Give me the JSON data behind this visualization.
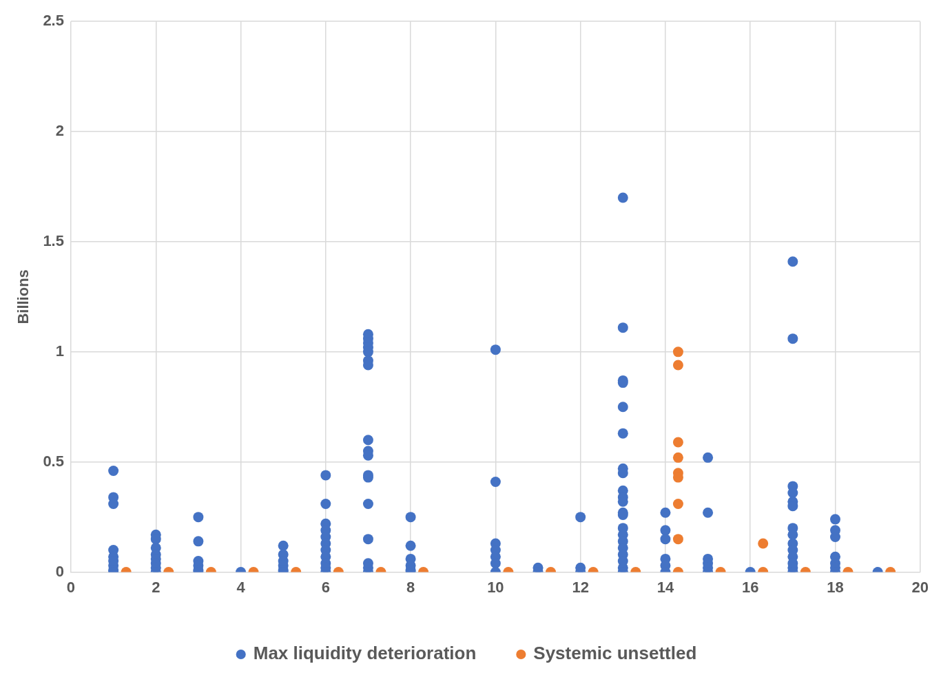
{
  "chart_data": {
    "type": "scatter",
    "ylabel": "Billions",
    "xlim": [
      0,
      20
    ],
    "xticks": [
      0,
      2,
      4,
      6,
      8,
      10,
      12,
      14,
      16,
      18,
      20
    ],
    "ylim": [
      0,
      2.5
    ],
    "yticks": [
      0,
      0.5,
      1,
      1.5,
      2,
      2.5
    ],
    "grid": true,
    "legend": "bottom",
    "marker": "circle",
    "series": [
      {
        "name": "Max liquidity deterioration",
        "color": "#4472c4",
        "x": [
          1,
          1,
          1,
          1,
          1,
          1,
          1,
          1,
          1,
          2,
          2,
          2,
          2,
          2,
          2,
          2,
          2,
          3,
          3,
          3,
          3,
          3,
          3,
          4,
          5,
          5,
          5,
          5,
          5,
          5,
          6,
          6,
          6,
          6,
          6,
          6,
          6,
          6,
          6,
          6,
          6,
          7,
          7,
          7,
          7,
          7,
          7,
          7,
          7,
          7,
          7,
          7,
          7,
          7,
          7,
          7,
          7,
          7,
          8,
          8,
          8,
          8,
          8,
          8,
          10,
          10,
          10,
          10,
          10,
          10,
          10,
          11,
          11,
          12,
          12,
          12,
          13,
          13,
          13,
          13,
          13,
          13,
          13,
          13,
          13,
          13,
          13,
          13,
          13,
          13,
          13,
          13,
          13,
          13,
          13,
          13,
          13,
          14,
          14,
          14,
          14,
          14,
          14,
          15,
          15,
          15,
          15,
          15,
          15,
          16,
          17,
          17,
          17,
          17,
          17,
          17,
          17,
          17,
          17,
          17,
          17,
          17,
          17,
          17,
          18,
          18,
          18,
          18,
          18,
          18,
          18,
          19
        ],
        "values": [
          0.46,
          0.34,
          0.31,
          0.1,
          0.07,
          0.05,
          0.03,
          0.01,
          0,
          0.17,
          0.15,
          0.11,
          0.08,
          0.06,
          0.04,
          0.02,
          0,
          0.25,
          0.14,
          0.05,
          0.03,
          0.01,
          0,
          0,
          0.12,
          0.08,
          0.05,
          0.03,
          0.01,
          0,
          0.44,
          0.31,
          0.22,
          0.19,
          0.16,
          0.13,
          0.1,
          0.07,
          0.04,
          0.02,
          0,
          1.08,
          1.06,
          1.04,
          1.02,
          1.0,
          0.96,
          0.94,
          0.6,
          0.55,
          0.53,
          0.44,
          0.43,
          0.31,
          0.15,
          0.04,
          0.02,
          0,
          0.25,
          0.12,
          0.06,
          0.03,
          0.01,
          0,
          1.01,
          0.41,
          0.13,
          0.1,
          0.07,
          0.04,
          0,
          0.02,
          0,
          0.25,
          0.02,
          0,
          1.7,
          1.11,
          0.87,
          0.86,
          0.75,
          0.63,
          0.47,
          0.45,
          0.37,
          0.34,
          0.32,
          0.27,
          0.26,
          0.2,
          0.17,
          0.14,
          0.11,
          0.08,
          0.05,
          0.02,
          0,
          0.27,
          0.19,
          0.15,
          0.06,
          0.03,
          0,
          0.52,
          0.27,
          0.06,
          0.04,
          0.02,
          0,
          0,
          1.41,
          1.06,
          0.39,
          0.36,
          0.32,
          0.3,
          0.2,
          0.17,
          0.13,
          0.1,
          0.07,
          0.04,
          0.02,
          0,
          0.24,
          0.19,
          0.16,
          0.07,
          0.04,
          0.02,
          0,
          0
        ]
      },
      {
        "name": "Systemic unsettled",
        "color": "#ed7d31",
        "x": [
          1.3,
          2.3,
          3.3,
          4.3,
          5.3,
          6.3,
          7.3,
          8.3,
          10.3,
          11.3,
          12.3,
          13.3,
          14.3,
          14.3,
          14.3,
          14.3,
          14.3,
          14.3,
          14.3,
          14.3,
          14.3,
          15.3,
          16.3,
          16.3,
          17.3,
          18.3,
          19.3
        ],
        "values": [
          0,
          0,
          0,
          0,
          0,
          0,
          0,
          0,
          0,
          0,
          0,
          0,
          1.0,
          0.94,
          0.59,
          0.52,
          0.45,
          0.43,
          0.31,
          0.15,
          0,
          0,
          0.13,
          0,
          0,
          0,
          0
        ]
      }
    ]
  }
}
